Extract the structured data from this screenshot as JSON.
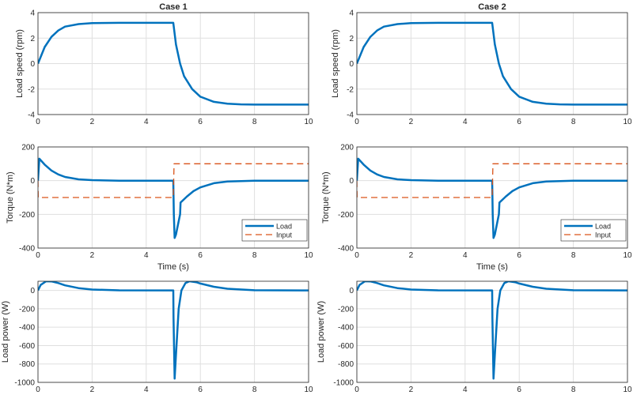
{
  "colors": {
    "load": "#0072BD",
    "input": "#D95319",
    "grid": "#DFDFDF",
    "axis": "#262626"
  },
  "chart_data": [
    {
      "type": "line",
      "title": "Case 1",
      "xlabel": "",
      "ylabel": "Load speed (rpm)",
      "xlim": [
        0,
        10
      ],
      "ylim": [
        -4,
        4
      ],
      "xticks": [
        "0",
        "2",
        "4",
        "6",
        "8",
        "10"
      ],
      "yticks": [
        "-4",
        "-2",
        "0",
        "2",
        "4"
      ],
      "grid": true,
      "series": [
        {
          "color": "#0072BD",
          "style": "solid",
          "x": [
            0,
            0.25,
            0.5,
            0.75,
            1,
            1.5,
            2,
            3,
            5,
            5.1,
            5.25,
            5.4,
            5.7,
            6,
            6.5,
            7,
            7.5,
            8,
            10
          ],
          "y": [
            0,
            1.3,
            2.1,
            2.6,
            2.9,
            3.1,
            3.18,
            3.2,
            3.2,
            1.5,
            0,
            -1,
            -2,
            -2.6,
            -3,
            -3.15,
            -3.2,
            -3.22,
            -3.22
          ]
        }
      ]
    },
    {
      "type": "line",
      "title": "Case 2",
      "xlabel": "",
      "ylabel": "Load speed (rpm)",
      "xlim": [
        0,
        10
      ],
      "ylim": [
        -4,
        4
      ],
      "xticks": [
        "0",
        "2",
        "4",
        "6",
        "8",
        "10"
      ],
      "yticks": [
        "-4",
        "-2",
        "0",
        "2",
        "4"
      ],
      "grid": true,
      "series": [
        {
          "color": "#0072BD",
          "style": "solid",
          "x": [
            0,
            0.25,
            0.5,
            0.75,
            1,
            1.5,
            2,
            3,
            5,
            5.1,
            5.25,
            5.4,
            5.7,
            6,
            6.5,
            7,
            7.5,
            8,
            10
          ],
          "y": [
            0,
            1.3,
            2.1,
            2.6,
            2.9,
            3.1,
            3.18,
            3.2,
            3.2,
            1.5,
            0,
            -1,
            -2,
            -2.6,
            -3,
            -3.15,
            -3.2,
            -3.22,
            -3.22
          ]
        }
      ]
    },
    {
      "type": "line",
      "title": "",
      "xlabel": "Time (s)",
      "ylabel": "Torque (N*m)",
      "xlim": [
        0,
        10
      ],
      "ylim": [
        -400,
        200
      ],
      "xticks": [
        "0",
        "2",
        "4",
        "6",
        "8",
        "10"
      ],
      "yticks": [
        "-400",
        "-200",
        "0",
        "200"
      ],
      "grid": true,
      "legend": "bottom-right",
      "series": [
        {
          "name": "Load",
          "color": "#0072BD",
          "style": "solid",
          "x": [
            0,
            0.05,
            0.25,
            0.5,
            0.75,
            1,
            1.5,
            2,
            3,
            5,
            5.02,
            5.05,
            5.1,
            5.25,
            5.27,
            5.5,
            5.75,
            6,
            6.5,
            7,
            8,
            10
          ],
          "y": [
            0,
            130,
            95,
            60,
            37,
            22,
            8,
            3,
            0,
            0,
            -200,
            -340,
            -320,
            -200,
            -130,
            -95,
            -62,
            -40,
            -15,
            -5,
            0,
            0
          ]
        },
        {
          "name": "Input",
          "color": "#D95319",
          "style": "dashed",
          "x": [
            0,
            0.01,
            5,
            5.03,
            10
          ],
          "y": [
            0,
            -100,
            -100,
            100,
            100
          ]
        }
      ]
    },
    {
      "type": "line",
      "title": "",
      "xlabel": "Time (s)",
      "ylabel": "Torque (N*m)",
      "xlim": [
        0,
        10
      ],
      "ylim": [
        -400,
        200
      ],
      "xticks": [
        "0",
        "2",
        "4",
        "6",
        "8",
        "10"
      ],
      "yticks": [
        "-400",
        "-200",
        "0",
        "200"
      ],
      "grid": true,
      "legend": "bottom-right",
      "series": [
        {
          "name": "Load",
          "color": "#0072BD",
          "style": "solid",
          "x": [
            0,
            0.05,
            0.25,
            0.5,
            0.75,
            1,
            1.5,
            2,
            3,
            5,
            5.02,
            5.05,
            5.1,
            5.25,
            5.27,
            5.5,
            5.75,
            6,
            6.5,
            7,
            8,
            10
          ],
          "y": [
            0,
            130,
            95,
            60,
            37,
            22,
            8,
            3,
            0,
            0,
            -200,
            -340,
            -320,
            -200,
            -130,
            -95,
            -62,
            -40,
            -15,
            -5,
            0,
            0
          ]
        },
        {
          "name": "Input",
          "color": "#D95319",
          "style": "dashed",
          "x": [
            0,
            0.01,
            5,
            5.03,
            10
          ],
          "y": [
            0,
            -100,
            -100,
            100,
            100
          ]
        }
      ]
    },
    {
      "type": "line",
      "title": "",
      "xlabel": "",
      "ylabel": "Load power (W)",
      "xlim": [
        0,
        10
      ],
      "ylim": [
        -1000,
        100
      ],
      "xticks": [
        "0",
        "2",
        "4",
        "6",
        "8",
        "10"
      ],
      "yticks": [
        "-1000",
        "-800",
        "-600",
        "-400",
        "-200",
        "0"
      ],
      "grid": true,
      "series": [
        {
          "color": "#0072BD",
          "style": "solid",
          "x": [
            0,
            0.1,
            0.3,
            0.5,
            0.75,
            1,
            1.5,
            2,
            3,
            5,
            5.01,
            5.05,
            5.1,
            5.2,
            5.3,
            5.45,
            5.6,
            5.85,
            6,
            6.5,
            7,
            8,
            10
          ],
          "y": [
            0,
            60,
            100,
            98,
            80,
            55,
            25,
            10,
            1,
            0,
            -300,
            -960,
            -700,
            -200,
            0,
            80,
            100,
            90,
            75,
            40,
            18,
            2,
            0
          ]
        }
      ]
    },
    {
      "type": "line",
      "title": "",
      "xlabel": "",
      "ylabel": "Load power (W)",
      "xlim": [
        0,
        10
      ],
      "ylim": [
        -1000,
        100
      ],
      "xticks": [
        "0",
        "2",
        "4",
        "6",
        "8",
        "10"
      ],
      "yticks": [
        "-1000",
        "-800",
        "-600",
        "-400",
        "-200",
        "0"
      ],
      "grid": true,
      "series": [
        {
          "color": "#0072BD",
          "style": "solid",
          "x": [
            0,
            0.1,
            0.3,
            0.5,
            0.75,
            1,
            1.5,
            2,
            3,
            5,
            5.01,
            5.05,
            5.1,
            5.2,
            5.3,
            5.45,
            5.6,
            5.85,
            6,
            6.5,
            7,
            8,
            10
          ],
          "y": [
            0,
            60,
            100,
            98,
            80,
            55,
            25,
            10,
            1,
            0,
            -300,
            -960,
            -700,
            -200,
            0,
            80,
            100,
            90,
            75,
            40,
            18,
            2,
            0
          ]
        }
      ]
    }
  ]
}
